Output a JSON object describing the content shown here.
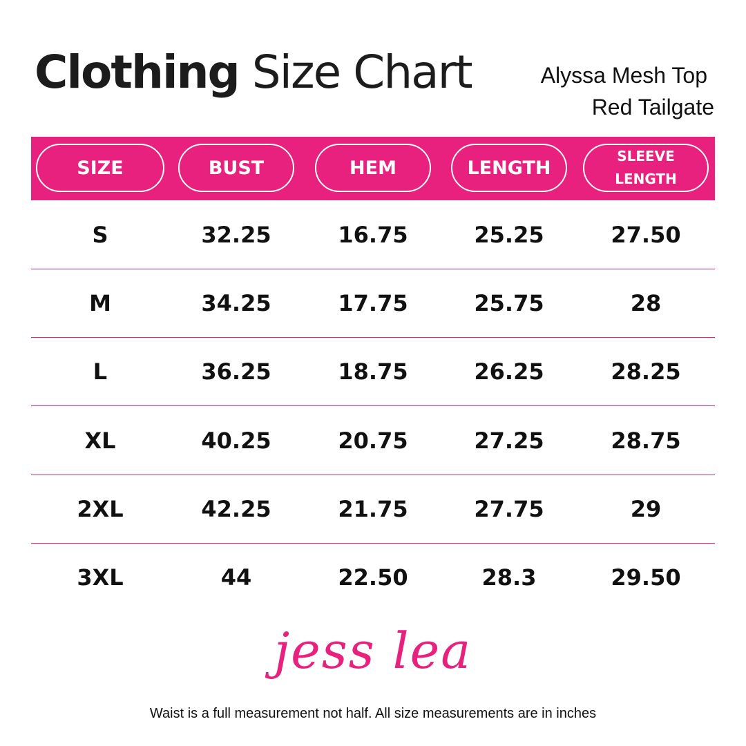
{
  "header": {
    "title_bold": "Clothing",
    "title_regular": "Size Chart",
    "product": "Alyssa Mesh Top",
    "color": "Red Tailgate"
  },
  "table": {
    "columns": [
      "SIZE",
      "BUST",
      "HEM",
      "LENGTH",
      "SLEEVE\nLENGTH"
    ],
    "rows": [
      [
        "S",
        "32.25",
        "16.75",
        "25.25",
        "27.50"
      ],
      [
        "M",
        "34.25",
        "17.75",
        "25.75",
        "28"
      ],
      [
        "L",
        "36.25",
        "18.75",
        "26.25",
        "28.25"
      ],
      [
        "XL",
        "40.25",
        "20.75",
        "27.25",
        "28.75"
      ],
      [
        "2XL",
        "42.25",
        "21.75",
        "27.75",
        "29"
      ],
      [
        "3XL",
        "44",
        "22.50",
        "28.3",
        "29.50"
      ]
    ]
  },
  "logo": "jess lea",
  "footer": "Waist is a full measurement not half. All size measurements are in inches"
}
